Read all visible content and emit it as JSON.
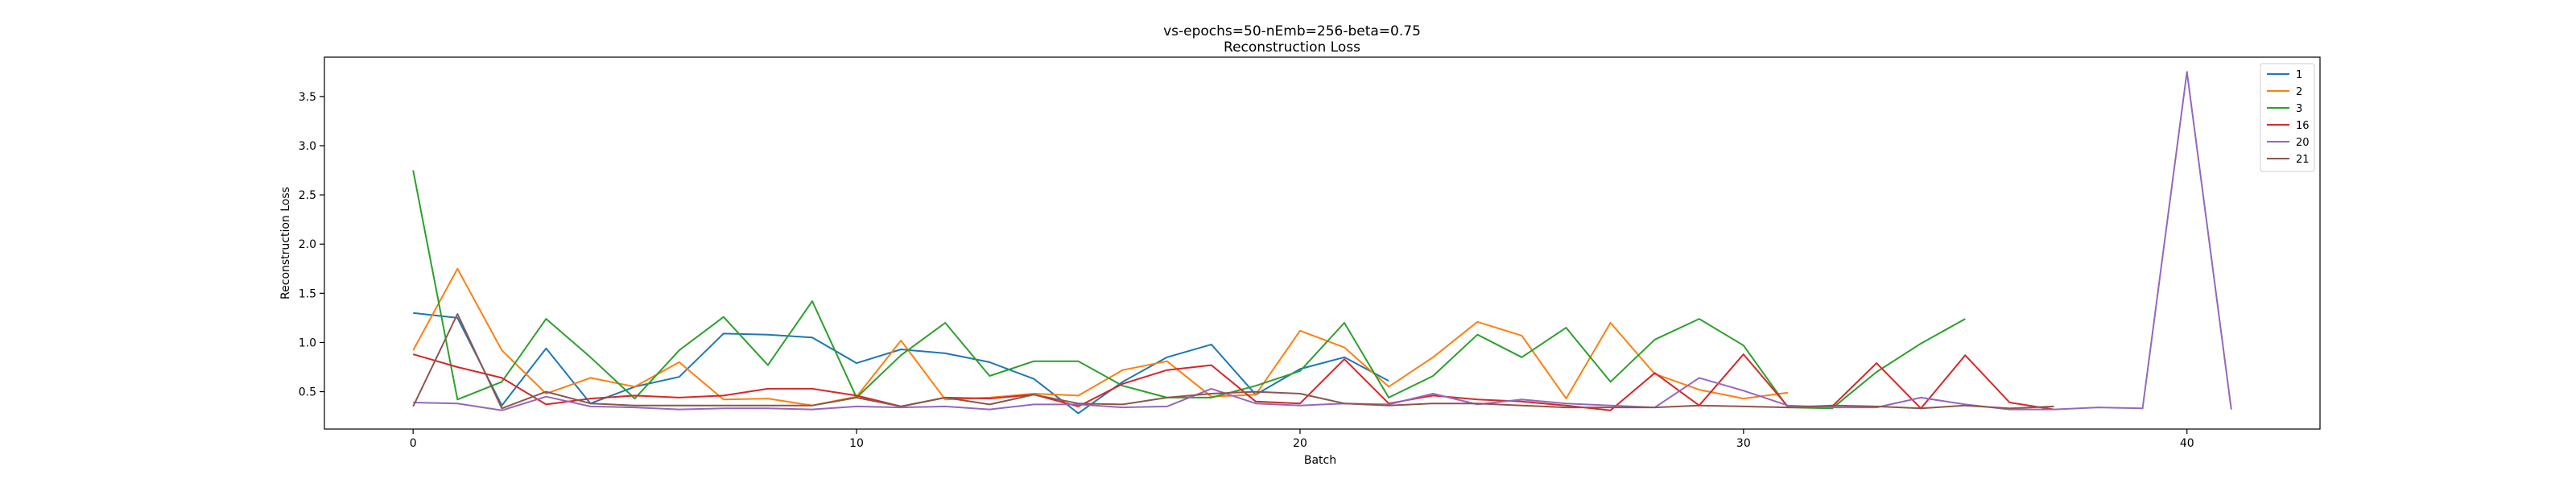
{
  "chart_data": {
    "type": "line",
    "title": "vs-epochs=50-nEmb=256-beta=0.75",
    "subtitle": "Reconstruction Loss",
    "xlabel": "Batch",
    "ylabel": "Reconstruction Loss",
    "xlim": [
      -2,
      43
    ],
    "ylim": [
      0.12,
      3.9
    ],
    "xticks": [
      0,
      10,
      20,
      30,
      40
    ],
    "yticks": [
      0.5,
      1.0,
      1.5,
      2.0,
      2.5,
      3.0,
      3.5
    ],
    "ytick_labels": [
      "0.5",
      "1.0",
      "1.5",
      "2.0",
      "2.5",
      "3.0",
      "3.5"
    ],
    "grid": false,
    "legend_position": "top-right",
    "series": [
      {
        "name": "1",
        "color": "#1f77b4",
        "x": [
          0,
          1,
          2,
          3,
          4,
          5,
          6,
          7,
          8,
          9,
          10,
          11,
          12,
          13,
          14,
          15,
          16,
          17,
          18,
          19,
          20,
          21,
          22
        ],
        "y": [
          1.3,
          1.25,
          0.36,
          0.94,
          0.38,
          0.55,
          0.65,
          1.09,
          1.08,
          1.05,
          0.79,
          0.93,
          0.89,
          0.8,
          0.63,
          0.28,
          0.6,
          0.85,
          0.98,
          0.47,
          0.73,
          0.85,
          0.61
        ]
      },
      {
        "name": "2",
        "color": "#ff7f0e",
        "x": [
          0,
          1,
          2,
          3,
          4,
          5,
          6,
          7,
          8,
          9,
          10,
          11,
          12,
          13,
          14,
          15,
          16,
          17,
          18,
          19,
          20,
          21,
          22,
          23,
          24,
          25,
          26,
          27,
          28,
          29,
          30,
          31
        ],
        "y": [
          0.92,
          1.75,
          0.92,
          0.48,
          0.64,
          0.55,
          0.8,
          0.42,
          0.43,
          0.36,
          0.45,
          1.02,
          0.42,
          0.44,
          0.48,
          0.46,
          0.72,
          0.81,
          0.45,
          0.47,
          1.12,
          0.95,
          0.55,
          0.85,
          1.21,
          1.07,
          0.43,
          1.2,
          0.68,
          0.52,
          0.43,
          0.49
        ]
      },
      {
        "name": "3",
        "color": "#2ca02c",
        "x": [
          0,
          1,
          2,
          3,
          4,
          5,
          6,
          7,
          8,
          9,
          10,
          11,
          12,
          13,
          14,
          15,
          16,
          17,
          18,
          19,
          20,
          21,
          22,
          23,
          24,
          25,
          26,
          27,
          28,
          29,
          30,
          31,
          32,
          33,
          34,
          35
        ],
        "y": [
          2.75,
          0.42,
          0.6,
          1.24,
          0.85,
          0.43,
          0.92,
          1.26,
          0.77,
          1.42,
          0.44,
          0.87,
          1.2,
          0.66,
          0.81,
          0.81,
          0.56,
          0.44,
          0.44,
          0.56,
          0.71,
          1.2,
          0.44,
          0.66,
          1.08,
          0.85,
          1.15,
          0.6,
          1.03,
          1.24,
          0.97,
          0.34,
          0.33,
          0.7,
          0.99,
          1.24
        ]
      },
      {
        "name": "16",
        "color": "#d62728",
        "x": [
          0,
          1,
          2,
          3,
          4,
          5,
          6,
          7,
          8,
          9,
          10,
          11,
          12,
          13,
          14,
          15,
          16,
          17,
          18,
          19,
          20,
          21,
          22,
          23,
          24,
          25,
          26,
          27,
          28,
          29,
          30,
          31,
          32,
          33,
          34,
          35,
          36,
          37
        ],
        "y": [
          0.88,
          0.75,
          0.64,
          0.37,
          0.43,
          0.46,
          0.44,
          0.46,
          0.53,
          0.53,
          0.46,
          0.35,
          0.44,
          0.43,
          0.47,
          0.35,
          0.58,
          0.72,
          0.77,
          0.4,
          0.38,
          0.83,
          0.38,
          0.46,
          0.42,
          0.4,
          0.36,
          0.31,
          0.69,
          0.36,
          0.88,
          0.35,
          0.35,
          0.79,
          0.33,
          0.87,
          0.39,
          0.32
        ]
      },
      {
        "name": "20",
        "color": "#9467bd",
        "x": [
          0,
          1,
          2,
          3,
          4,
          5,
          6,
          7,
          8,
          9,
          10,
          11,
          12,
          13,
          14,
          15,
          16,
          17,
          18,
          19,
          20,
          21,
          22,
          23,
          24,
          25,
          26,
          27,
          28,
          29,
          30,
          31,
          32,
          33,
          34,
          35,
          36,
          37,
          38,
          39,
          40,
          41
        ],
        "y": [
          0.39,
          0.38,
          0.31,
          0.45,
          0.35,
          0.34,
          0.32,
          0.33,
          0.33,
          0.32,
          0.35,
          0.34,
          0.35,
          0.32,
          0.37,
          0.37,
          0.34,
          0.35,
          0.53,
          0.38,
          0.36,
          0.38,
          0.37,
          0.48,
          0.37,
          0.42,
          0.38,
          0.36,
          0.34,
          0.64,
          0.51,
          0.36,
          0.34,
          0.34,
          0.44,
          0.37,
          0.32,
          0.32,
          0.34,
          0.33,
          3.75,
          0.32
        ]
      },
      {
        "name": "21",
        "color": "#8c564b",
        "x": [
          0,
          1,
          2,
          3,
          4,
          5,
          6,
          7,
          8,
          9,
          10,
          11,
          12,
          13,
          14,
          15,
          16,
          17,
          18,
          19,
          20,
          21,
          22,
          23,
          24,
          25,
          26,
          27,
          28,
          29,
          30,
          31,
          32,
          33,
          34,
          35,
          36,
          37
        ],
        "y": [
          0.35,
          1.29,
          0.33,
          0.5,
          0.38,
          0.36,
          0.36,
          0.36,
          0.36,
          0.36,
          0.44,
          0.35,
          0.44,
          0.37,
          0.47,
          0.38,
          0.37,
          0.44,
          0.48,
          0.5,
          0.48,
          0.38,
          0.36,
          0.38,
          0.38,
          0.36,
          0.34,
          0.34,
          0.34,
          0.36,
          0.35,
          0.34,
          0.36,
          0.35,
          0.33,
          0.36,
          0.33,
          0.35
        ]
      }
    ]
  }
}
